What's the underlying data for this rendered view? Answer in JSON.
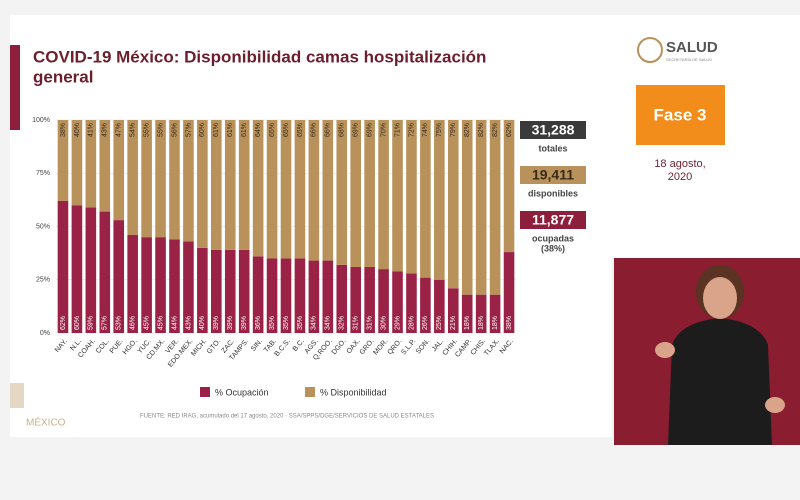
{
  "header": {
    "title_lines": [
      "COVID-19 México: Disponibilidad camas hospitalización",
      "general"
    ]
  },
  "logo": {
    "name": "SALUD",
    "subtitle": "SECRETARÍA DE SALUD"
  },
  "phase": "Fase 3",
  "date_lines": [
    "18 agosto,",
    "2020"
  ],
  "footer_logo": "MÉXICO",
  "summary": [
    {
      "value": "31,288",
      "label": [
        "totales"
      ],
      "color": "#3a3a3a",
      "text_color": "#ffffff"
    },
    {
      "value": "19,411",
      "label": [
        "disponibles"
      ],
      "color": "#b8925a",
      "text_color": "#3a2a1a"
    },
    {
      "value": "11,877",
      "label": [
        "ocupadas",
        "(38%)"
      ],
      "color": "#8e1f3c",
      "text_color": "#ffffff"
    }
  ],
  "chart_data": {
    "type": "stacked_bar",
    "source": "FUENTE: RED IRAG, acumulado del 17 agosto, 2020   ·   SSA/SPPS/DGE/SERVICIOS DE SALUD ESTATALES",
    "categories": [
      "NAY.",
      "N.L.",
      "COAH.",
      "COL.",
      "PUE.",
      "HGO.",
      "YUC.",
      "CD.MX.",
      "VER.",
      "EDO.MEX.",
      "MICH.",
      "GTO.",
      "ZAC.",
      "TAMPS.",
      "SIN.",
      "TAB.",
      "B.C.S.",
      "B.C.",
      "AGS.",
      "Q.ROO.",
      "DGO.",
      "OAX.",
      "GRO.",
      "MOR.",
      "QRO.",
      "S.L.P.",
      "SON.",
      "JAL.",
      "CHIH.",
      "CAMP.",
      "CHIS.",
      "TLAX.",
      "NAC."
    ],
    "series": [
      {
        "name": "% Ocupación",
        "color": "#9b2247",
        "values": [
          62,
          60,
          59,
          57,
          53,
          46,
          45,
          45,
          44,
          43,
          40,
          39,
          39,
          39,
          36,
          35,
          35,
          35,
          34,
          34,
          32,
          31,
          31,
          30,
          29,
          28,
          26,
          25,
          21,
          18,
          18,
          18,
          38
        ],
        "value_labels": [
          "62%",
          "60%",
          "59%",
          "57%",
          "53%",
          "46%",
          "45%",
          "45%",
          "44%",
          "43%",
          "40%",
          "39%",
          "39%",
          "39%",
          "36%",
          "35%",
          "35%",
          "35%",
          "34%",
          "34%",
          "32%",
          "31%",
          "31%",
          "30%",
          "29%",
          "28%",
          "26%",
          "25%",
          "21%",
          "18%",
          "18%",
          "18%",
          "38%"
        ]
      },
      {
        "name": "% Disponibilidad",
        "color": "#b8925a",
        "values": [
          38,
          40,
          41,
          43,
          47,
          54,
          55,
          55,
          56,
          57,
          60,
          61,
          61,
          61,
          64,
          65,
          65,
          65,
          66,
          66,
          68,
          69,
          69,
          70,
          71,
          72,
          74,
          75,
          79,
          82,
          82,
          82,
          62
        ],
        "value_labels": [
          "38%",
          "40%",
          "41%",
          "43%",
          "47%",
          "54%",
          "55%",
          "55%",
          "56%",
          "57%",
          "60%",
          "61%",
          "61%",
          "61%",
          "64%",
          "65%",
          "65%",
          "65%",
          "66%",
          "66%",
          "68%",
          "69%",
          "69%",
          "70%",
          "71%",
          "72%",
          "74%",
          "75%",
          "79%",
          "82%",
          "82%",
          "82%",
          "62%"
        ]
      }
    ],
    "ylim": [
      0,
      100
    ],
    "yticks": [
      {
        "value": 0,
        "label": "0%"
      },
      {
        "value": 25,
        "label": "25%"
      },
      {
        "value": 50,
        "label": "50%"
      },
      {
        "value": 75,
        "label": "75%"
      },
      {
        "value": 100,
        "label": "100%"
      }
    ],
    "grid": true
  }
}
